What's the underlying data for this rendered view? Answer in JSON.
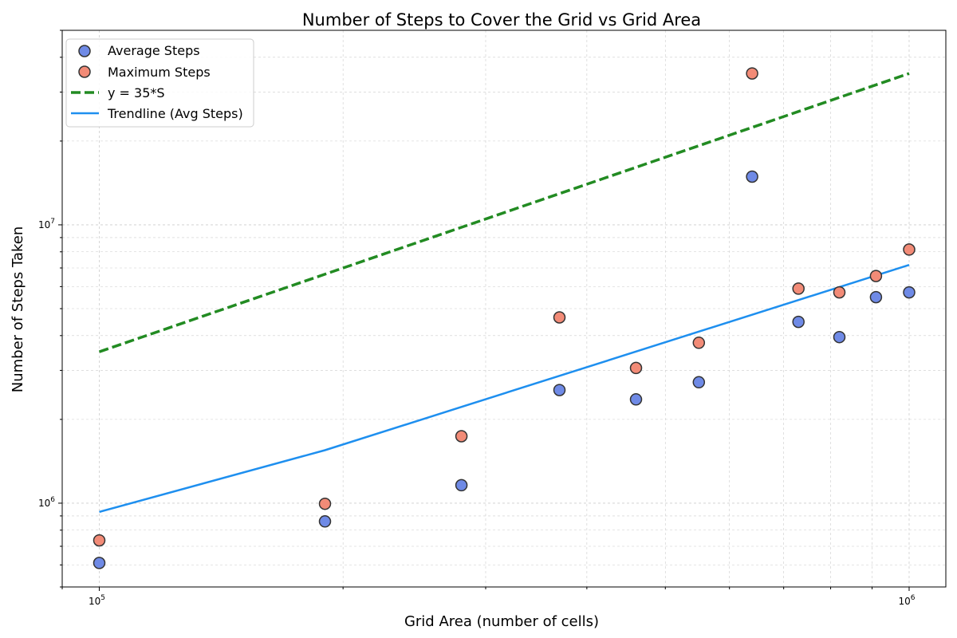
{
  "chart_data": {
    "type": "scatter",
    "title": "Number of Steps to Cover the Grid vs Grid Area",
    "xlabel": "Grid Area (number of cells)",
    "ylabel": "Number of Steps Taken",
    "xscale": "log",
    "yscale": "log",
    "xlim": [
      90000,
      1110000
    ],
    "ylim": [
      500000,
      50000000
    ],
    "grid": true,
    "legend_position": "top-left",
    "x_ticks": [
      {
        "value": 100000,
        "base": "10",
        "exp": "5"
      },
      {
        "value": 1000000,
        "base": "10",
        "exp": "6"
      }
    ],
    "y_ticks": [
      {
        "value": 1000000,
        "base": "10",
        "exp": "6"
      },
      {
        "value": 10000000,
        "base": "10",
        "exp": "7"
      }
    ],
    "series": [
      {
        "name": "Average Steps",
        "kind": "scatter",
        "color": "#6f8ae6",
        "points": [
          {
            "x": 100000,
            "y": 610000
          },
          {
            "x": 190000,
            "y": 860000
          },
          {
            "x": 280000,
            "y": 1160000
          },
          {
            "x": 370000,
            "y": 2550000
          },
          {
            "x": 460000,
            "y": 2360000
          },
          {
            "x": 550000,
            "y": 2720000
          },
          {
            "x": 640000,
            "y": 14900000
          },
          {
            "x": 730000,
            "y": 4480000
          },
          {
            "x": 820000,
            "y": 3950000
          },
          {
            "x": 910000,
            "y": 5500000
          },
          {
            "x": 1000000,
            "y": 5720000
          }
        ]
      },
      {
        "name": "Maximum Steps",
        "kind": "scatter",
        "color": "#f28b77",
        "points": [
          {
            "x": 100000,
            "y": 735000
          },
          {
            "x": 190000,
            "y": 995000
          },
          {
            "x": 280000,
            "y": 1740000
          },
          {
            "x": 370000,
            "y": 4650000
          },
          {
            "x": 460000,
            "y": 3060000
          },
          {
            "x": 550000,
            "y": 3770000
          },
          {
            "x": 640000,
            "y": 35000000
          },
          {
            "x": 730000,
            "y": 5900000
          },
          {
            "x": 820000,
            "y": 5720000
          },
          {
            "x": 910000,
            "y": 6550000
          },
          {
            "x": 1000000,
            "y": 8150000
          }
        ]
      },
      {
        "name": "y = 35*S",
        "kind": "line",
        "style": "dashed",
        "color": "#228b22",
        "points": [
          {
            "x": 100000,
            "y": 3500000
          },
          {
            "x": 1000000,
            "y": 35000000
          }
        ]
      },
      {
        "name": "Trendline (Avg Steps)",
        "kind": "line",
        "style": "solid",
        "color": "#1e8fef",
        "points": [
          {
            "x": 100000,
            "y": 930000
          },
          {
            "x": 190000,
            "y": 1550000
          },
          {
            "x": 1000000,
            "y": 7180000
          }
        ]
      }
    ]
  }
}
